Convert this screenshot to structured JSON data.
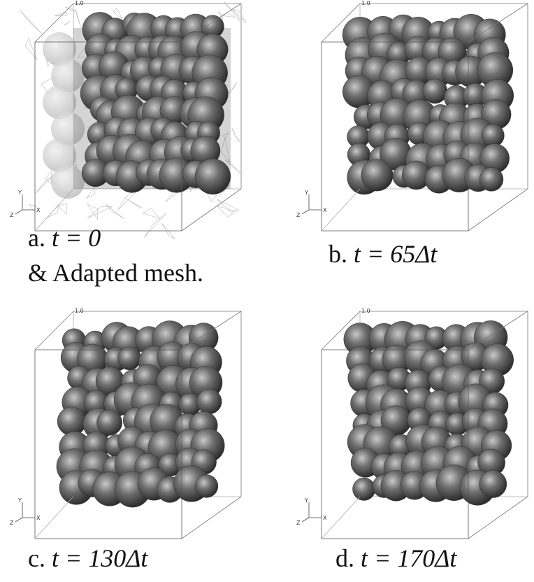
{
  "panels": [
    {
      "label": "a.",
      "equation": "t = 0",
      "note": "& Adapted mesh.",
      "corner": "1.0",
      "axes": {
        "y": "Y",
        "z": "Z",
        "x": "X"
      }
    },
    {
      "label": "b.",
      "equation": "t = 65Δt",
      "corner": "1.0",
      "axes": {
        "y": "Y",
        "z": "Z",
        "x": "X"
      }
    },
    {
      "label": "c.",
      "equation": "t = 130Δt",
      "corner": "1.0",
      "axes": {
        "y": "Y",
        "z": "Z",
        "x": "X"
      }
    },
    {
      "label": "d.",
      "equation": "t = 170Δt",
      "corner": "1.0",
      "axes": {
        "y": "Y",
        "z": "Z",
        "x": "X"
      }
    }
  ]
}
